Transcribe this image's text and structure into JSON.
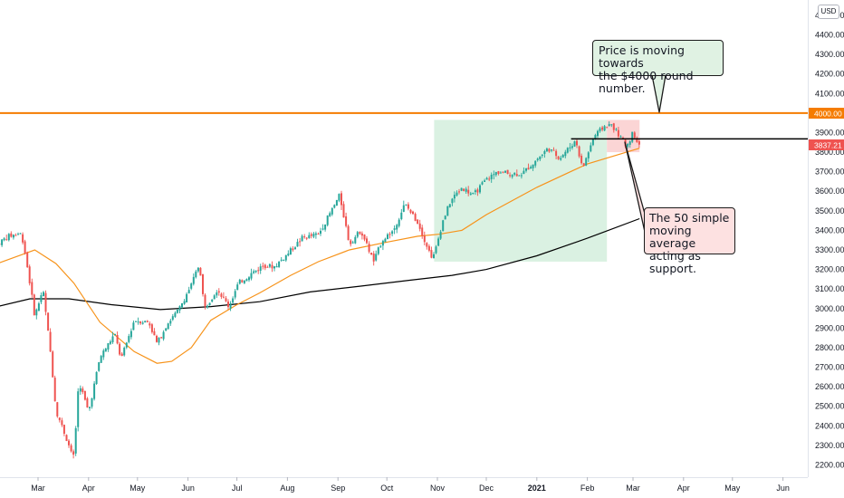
{
  "currency_label": "USD",
  "annotations": {
    "resistance_note": "Price is moving towards\nthe $4000 round number.",
    "support_note": "The 50 simple\nmoving average\nacting as support."
  },
  "price_tags": {
    "resistance_level": "4000.00",
    "current_price": "3837.21"
  },
  "colors": {
    "up_candle": "#26a69a",
    "down_candle": "#ef5350",
    "sma50": "#f7931a",
    "sma200": "#000000",
    "resistance_line": "#f57c00",
    "support_line": "#000000",
    "uptrend_box": "#d6efdf",
    "pullback_box": "#fbd3d3"
  },
  "chart_data": {
    "type": "candlestick",
    "title": "",
    "ylim": [
      2150,
      4560
    ],
    "y_ticks": [
      "2200.00",
      "2300.00",
      "2400.00",
      "2500.00",
      "2600.00",
      "2700.00",
      "2800.00",
      "2900.00",
      "3000.00",
      "3100.00",
      "3200.00",
      "3300.00",
      "3400.00",
      "3500.00",
      "3600.00",
      "3700.00",
      "3800.00",
      "3900.00",
      "4000.00",
      "4100.00",
      "4200.00",
      "4300.00",
      "4400.00",
      "4500.00"
    ],
    "x_ticks": [
      {
        "date": "2020-03-01",
        "label": "Mar"
      },
      {
        "date": "2020-04-01",
        "label": "Apr"
      },
      {
        "date": "2020-05-01",
        "label": "May"
      },
      {
        "date": "2020-06-01",
        "label": "Jun"
      },
      {
        "date": "2020-07-01",
        "label": "Jul"
      },
      {
        "date": "2020-08-01",
        "label": "Aug"
      },
      {
        "date": "2020-09-01",
        "label": "Sep"
      },
      {
        "date": "2020-10-01",
        "label": "Oct"
      },
      {
        "date": "2020-11-01",
        "label": "Nov"
      },
      {
        "date": "2020-12-01",
        "label": "Dec"
      },
      {
        "date": "2021-01-01",
        "label": "2021"
      },
      {
        "date": "2021-02-01",
        "label": "Feb"
      },
      {
        "date": "2021-03-01",
        "label": "Mar"
      },
      {
        "date": "2021-04-01",
        "label": "Apr"
      },
      {
        "date": "2021-05-01",
        "label": "May"
      },
      {
        "date": "2021-06-01",
        "label": "Jun"
      }
    ],
    "price_path": [
      [
        "2020-02-05",
        3330
      ],
      [
        "2020-02-12",
        3370
      ],
      [
        "2020-02-19",
        3385
      ],
      [
        "2020-02-21",
        3340
      ],
      [
        "2020-02-25",
        3130
      ],
      [
        "2020-02-28",
        2960
      ],
      [
        "2020-03-04",
        3100
      ],
      [
        "2020-03-09",
        2750
      ],
      [
        "2020-03-12",
        2480
      ],
      [
        "2020-03-16",
        2390
      ],
      [
        "2020-03-20",
        2300
      ],
      [
        "2020-03-23",
        2237
      ],
      [
        "2020-03-26",
        2630
      ],
      [
        "2020-04-01",
        2470
      ],
      [
        "2020-04-08",
        2750
      ],
      [
        "2020-04-17",
        2870
      ],
      [
        "2020-04-21",
        2740
      ],
      [
        "2020-04-29",
        2940
      ],
      [
        "2020-05-08",
        2930
      ],
      [
        "2020-05-13",
        2820
      ],
      [
        "2020-05-19",
        2920
      ],
      [
        "2020-05-26",
        2990
      ],
      [
        "2020-06-03",
        3120
      ],
      [
        "2020-06-08",
        3230
      ],
      [
        "2020-06-11",
        3000
      ],
      [
        "2020-06-19",
        3100
      ],
      [
        "2020-06-26",
        3010
      ],
      [
        "2020-07-02",
        3130
      ],
      [
        "2020-07-10",
        3180
      ],
      [
        "2020-07-17",
        3220
      ],
      [
        "2020-07-24",
        3215
      ],
      [
        "2020-07-31",
        3270
      ],
      [
        "2020-08-10",
        3360
      ],
      [
        "2020-08-20",
        3380
      ],
      [
        "2020-08-28",
        3500
      ],
      [
        "2020-09-02",
        3580
      ],
      [
        "2020-09-08",
        3330
      ],
      [
        "2020-09-15",
        3400
      ],
      [
        "2020-09-23",
        3240
      ],
      [
        "2020-09-28",
        3350
      ],
      [
        "2020-10-05",
        3400
      ],
      [
        "2020-10-12",
        3535
      ],
      [
        "2020-10-20",
        3440
      ],
      [
        "2020-10-28",
        3270
      ],
      [
        "2020-10-30",
        3270
      ],
      [
        "2020-11-04",
        3440
      ],
      [
        "2020-11-09",
        3550
      ],
      [
        "2020-11-16",
        3620
      ],
      [
        "2020-11-23",
        3580
      ],
      [
        "2020-12-01",
        3660
      ],
      [
        "2020-12-08",
        3700
      ],
      [
        "2020-12-15",
        3690
      ],
      [
        "2020-12-23",
        3690
      ],
      [
        "2020-12-31",
        3755
      ],
      [
        "2021-01-08",
        3820
      ],
      [
        "2021-01-15",
        3770
      ],
      [
        "2021-01-25",
        3860
      ],
      [
        "2021-01-29",
        3715
      ],
      [
        "2021-02-05",
        3880
      ],
      [
        "2021-02-12",
        3935
      ],
      [
        "2021-02-16",
        3940
      ],
      [
        "2021-02-25",
        3830
      ],
      [
        "2021-03-01",
        3900
      ],
      [
        "2021-03-05",
        3840
      ]
    ],
    "sma50": [
      [
        "2020-02-05",
        3230
      ],
      [
        "2020-02-28",
        3300
      ],
      [
        "2020-03-12",
        3230
      ],
      [
        "2020-03-23",
        3130
      ],
      [
        "2020-04-08",
        2930
      ],
      [
        "2020-04-29",
        2780
      ],
      [
        "2020-05-13",
        2720
      ],
      [
        "2020-05-22",
        2730
      ],
      [
        "2020-06-03",
        2800
      ],
      [
        "2020-06-15",
        2940
      ],
      [
        "2020-07-01",
        3020
      ],
      [
        "2020-07-15",
        3080
      ],
      [
        "2020-08-03",
        3170
      ],
      [
        "2020-08-20",
        3240
      ],
      [
        "2020-09-08",
        3300
      ],
      [
        "2020-10-01",
        3340
      ],
      [
        "2020-10-20",
        3370
      ],
      [
        "2020-11-02",
        3380
      ],
      [
        "2020-11-16",
        3400
      ],
      [
        "2020-12-01",
        3480
      ],
      [
        "2021-01-01",
        3620
      ],
      [
        "2021-02-01",
        3740
      ],
      [
        "2021-03-05",
        3820
      ]
    ],
    "sma200": [
      [
        "2020-02-05",
        3010
      ],
      [
        "2020-02-25",
        3050
      ],
      [
        "2020-03-20",
        3050
      ],
      [
        "2020-04-15",
        3020
      ],
      [
        "2020-05-15",
        2995
      ],
      [
        "2020-06-15",
        3010
      ],
      [
        "2020-07-15",
        3035
      ],
      [
        "2020-08-15",
        3085
      ],
      [
        "2020-09-15",
        3115
      ],
      [
        "2020-10-15",
        3145
      ],
      [
        "2020-11-10",
        3170
      ],
      [
        "2020-12-01",
        3200
      ],
      [
        "2021-01-01",
        3270
      ],
      [
        "2021-02-01",
        3360
      ],
      [
        "2021-03-05",
        3460
      ]
    ],
    "levels": [
      {
        "name": "round-number-resistance",
        "value": 4000
      },
      {
        "name": "recent-high-line",
        "value": 3868,
        "from": "2021-01-22"
      }
    ],
    "zones": [
      {
        "name": "uptrend-zone",
        "from": "2020-10-30",
        "to": "2021-02-13",
        "low": 3240,
        "high": 3965
      },
      {
        "name": "pullback-zone",
        "from": "2021-02-13",
        "to": "2021-03-05",
        "low": 3800,
        "high": 3965
      }
    ]
  }
}
